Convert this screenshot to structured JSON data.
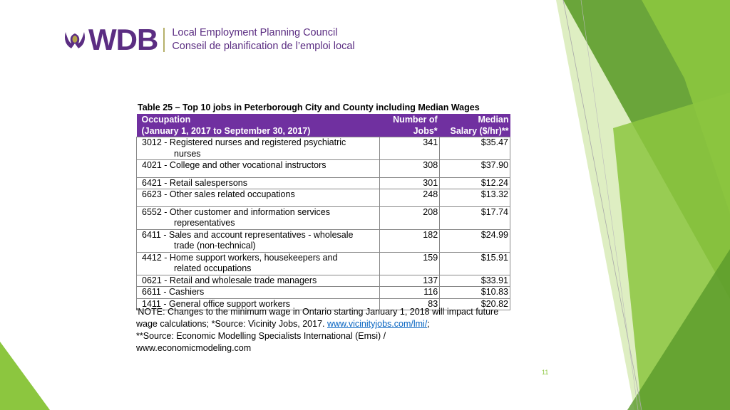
{
  "logo": {
    "brand": "WDB",
    "line1": "Local Employment Planning Council",
    "line2": "Conseil de planification de l’emploi local"
  },
  "caption": "Table 25 – Top 10 jobs in Peterborough City and County including Median Wages",
  "table": {
    "headers": {
      "occupation_1": "Occupation",
      "occupation_2": "(January 1, 2017 to September 30, 2017)",
      "jobs_1": "Number of",
      "jobs_2": "Jobs*",
      "salary_1": "Median",
      "salary_2": "Salary ($/hr)**"
    },
    "rows": [
      {
        "occ": "3012 - Registered nurses and registered psychiatric",
        "occ2": "nurses",
        "jobs": "341",
        "salary": "$35.47"
      },
      {
        "occ": "4021 - College and other vocational instructors",
        "occ2": "",
        "jobs": "308",
        "salary": "$37.90"
      },
      {
        "occ": "6421 - Retail salespersons",
        "occ2": "",
        "jobs": "301",
        "salary": "$12.24"
      },
      {
        "occ": "6623 - Other sales related occupations",
        "occ2": "",
        "jobs": "248",
        "salary": "$13.32"
      },
      {
        "occ": "6552 - Other customer and information services",
        "occ2": "representatives",
        "jobs": "208",
        "salary": "$17.74"
      },
      {
        "occ": "6411 - Sales and account representatives - wholesale",
        "occ2": "trade (non-technical)",
        "jobs": "182",
        "salary": "$24.99"
      },
      {
        "occ": "4412 - Home support workers, housekeepers and",
        "occ2": "related occupations",
        "jobs": "159",
        "salary": "$15.91"
      },
      {
        "occ": "0621 - Retail and wholesale trade managers",
        "occ2": "",
        "jobs": "137",
        "salary": "$33.91"
      },
      {
        "occ": "6611 - Cashiers",
        "occ2": "",
        "jobs": "116",
        "salary": "$10.83"
      },
      {
        "occ": "1411 - General office support workers",
        "occ2": "",
        "jobs": "83",
        "salary": "$20.82"
      }
    ]
  },
  "note": {
    "text1": "'NOTE: Changes to the minimum wage in Ontario starting January 1, 2018 will impact future wage calculations; *Source: Vicinity Jobs, 2017. ",
    "link": "www.vicinityjobs.com/lmi/",
    "text2": ";",
    "text3": "**Source: Economic Modelling Specialists International (Emsi) /",
    "text4": "www.economicmodeling.com"
  },
  "page_number": "11",
  "colors": {
    "header": "#7030a0",
    "brand": "#5b2d82",
    "green": "#8cc63f"
  }
}
